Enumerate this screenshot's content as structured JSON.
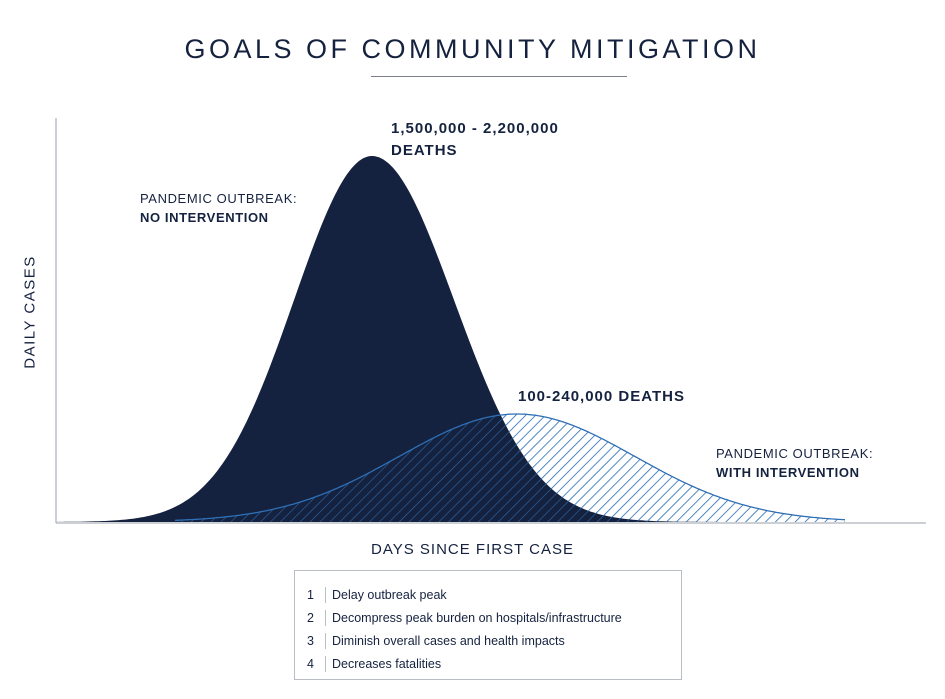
{
  "title": "GOALS OF COMMUNITY MITIGATION",
  "chart_data": {
    "type": "area",
    "title": "GOALS OF COMMUNITY MITIGATION",
    "xlabel": "DAYS SINCE FIRST CASE",
    "ylabel": "DAILY CASES",
    "grid": false,
    "series": [
      {
        "label_line1": "PANDEMIC OUTBREAK:",
        "label_line2": "NO INTERVENTION",
        "deaths_line1": "1,500,000 - 2,200,000",
        "deaths_line2": "DEATHS",
        "color": "#15223f",
        "fill": "solid"
      },
      {
        "label_line1": "PANDEMIC OUTBREAK:",
        "label_line2": "WITH INTERVENTION",
        "deaths_line1": "100-240,000 DEATHS",
        "color": "#2f6fb5",
        "fill": "hatched"
      }
    ]
  },
  "legend": {
    "items": [
      {
        "num": "1",
        "text": "Delay outbreak peak"
      },
      {
        "num": "2",
        "text": "Decompress peak burden on hospitals/infrastructure"
      },
      {
        "num": "3",
        "text": "Diminish overall cases and health impacts"
      },
      {
        "num": "4",
        "text": "Decreases fatalities"
      }
    ]
  },
  "colors": {
    "navy": "#15223f",
    "hatch_blue": "#2f6fb5",
    "axis": "#9aa0a8"
  }
}
